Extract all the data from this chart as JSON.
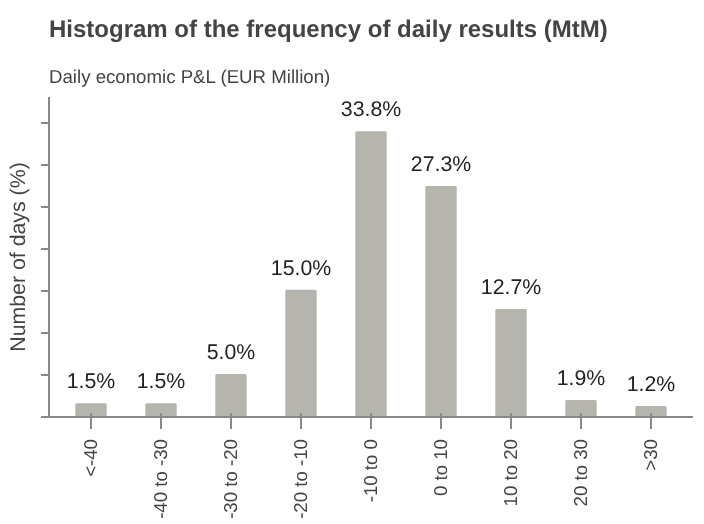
{
  "chart_data": {
    "type": "bar",
    "title": "Histogram of the frequency of daily results (MtM)",
    "subtitle": "Daily economic P&L (EUR Million)",
    "ylabel": "Number of days (%)",
    "categories": [
      "<-40",
      "-40 to -30",
      "-30 to -20",
      "-20 to -10",
      "-10 to 0",
      "0 to 10",
      "10 to 20",
      "20 to 30",
      ">30"
    ],
    "values": [
      1.5,
      1.5,
      5.0,
      15.0,
      33.8,
      27.3,
      12.7,
      1.9,
      1.2
    ],
    "value_labels": [
      "1.5%",
      "1.5%",
      "5.0%",
      "15.0%",
      "33.8%",
      "27.3%",
      "12.7%",
      "1.9%",
      "1.2%"
    ],
    "color": "#b5b5ae",
    "ylim": [
      0,
      38
    ],
    "yticks": [
      {
        "value": 0,
        "label": null
      },
      {
        "value": 5,
        "label": null
      },
      {
        "value": 10,
        "label": null
      },
      {
        "value": 15,
        "label": null
      },
      {
        "value": 20,
        "label": null
      },
      {
        "value": 25,
        "label": null
      },
      {
        "value": 30,
        "label": null
      },
      {
        "value": 35,
        "label": null
      }
    ],
    "grid": false
  }
}
